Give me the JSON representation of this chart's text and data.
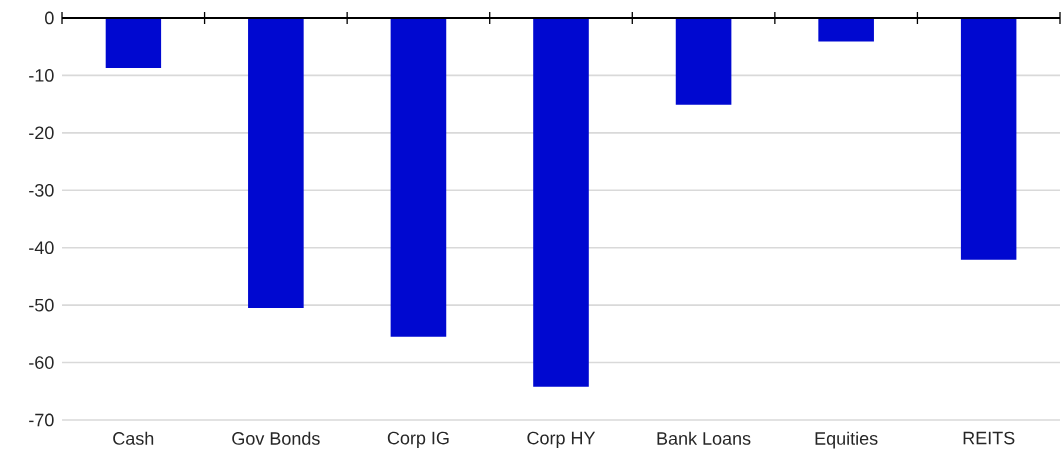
{
  "chart_data": {
    "type": "bar",
    "categories": [
      "Cash",
      "Gov Bonds",
      "Corp IG",
      "Corp HY",
      "Bank Loans",
      "Equities",
      "REITS"
    ],
    "values": [
      -8.7,
      -50.5,
      -55.5,
      -64.2,
      -15.1,
      -4.1,
      -42.1
    ],
    "color": "#0008d0",
    "ylim": [
      -70,
      0
    ],
    "yticks": [
      -70,
      -60,
      -50,
      -40,
      -30,
      -20,
      -10,
      0
    ],
    "grid": "y"
  }
}
